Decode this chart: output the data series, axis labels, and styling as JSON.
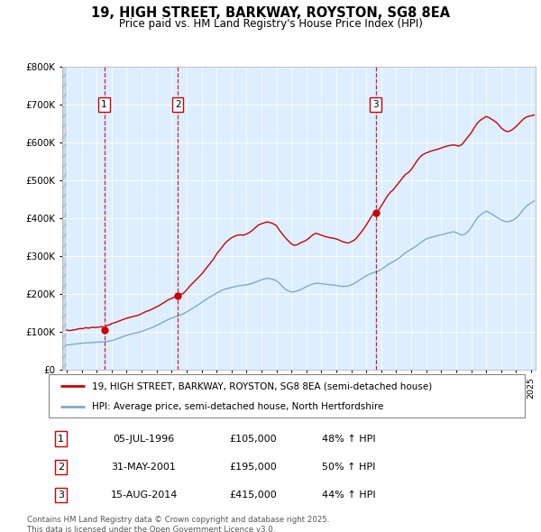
{
  "title": "19, HIGH STREET, BARKWAY, ROYSTON, SG8 8EA",
  "subtitle": "Price paid vs. HM Land Registry's House Price Index (HPI)",
  "legend_line1": "19, HIGH STREET, BARKWAY, ROYSTON, SG8 8EA (semi-detached house)",
  "legend_line2": "HPI: Average price, semi-detached house, North Hertfordshire",
  "footer": "Contains HM Land Registry data © Crown copyright and database right 2025.\nThis data is licensed under the Open Government Licence v3.0.",
  "sales": [
    {
      "num": 1,
      "date_label": "05-JUL-1996",
      "price": 105000,
      "pct": "48%",
      "x_year": 1996.5
    },
    {
      "num": 2,
      "date_label": "31-MAY-2001",
      "price": 195000,
      "pct": "50%",
      "x_year": 2001.42
    },
    {
      "num": 3,
      "date_label": "15-AUG-2014",
      "price": 415000,
      "pct": "44%",
      "x_year": 2014.62
    }
  ],
  "price_color": "#cc0000",
  "hpi_color": "#7faacc",
  "background_color": "#ddeeff",
  "ylim": [
    0,
    800000
  ],
  "yticks": [
    0,
    100000,
    200000,
    300000,
    400000,
    500000,
    600000,
    700000,
    800000
  ],
  "xmin": 1993.7,
  "xmax": 2025.3,
  "price_series_years": [
    1994.0,
    1994.1,
    1994.2,
    1994.3,
    1994.4,
    1994.5,
    1994.6,
    1994.7,
    1994.8,
    1994.9,
    1995.0,
    1995.1,
    1995.2,
    1995.3,
    1995.4,
    1995.5,
    1995.6,
    1995.7,
    1995.8,
    1995.9,
    1996.0,
    1996.1,
    1996.2,
    1996.3,
    1996.4,
    1996.5,
    1996.6,
    1996.7,
    1996.8,
    1996.9,
    1997.0,
    1997.2,
    1997.4,
    1997.6,
    1997.8,
    1998.0,
    1998.2,
    1998.4,
    1998.6,
    1998.8,
    1999.0,
    1999.2,
    1999.4,
    1999.6,
    1999.8,
    2000.0,
    2000.2,
    2000.4,
    2000.6,
    2000.8,
    2001.0,
    2001.2,
    2001.42,
    2001.6,
    2001.8,
    2002.0,
    2002.2,
    2002.4,
    2002.6,
    2002.8,
    2003.0,
    2003.2,
    2003.4,
    2003.6,
    2003.8,
    2004.0,
    2004.2,
    2004.4,
    2004.6,
    2004.8,
    2005.0,
    2005.2,
    2005.4,
    2005.6,
    2005.8,
    2006.0,
    2006.2,
    2006.4,
    2006.6,
    2006.8,
    2007.0,
    2007.2,
    2007.4,
    2007.6,
    2007.8,
    2008.0,
    2008.2,
    2008.4,
    2008.6,
    2008.8,
    2009.0,
    2009.2,
    2009.4,
    2009.6,
    2009.8,
    2010.0,
    2010.2,
    2010.4,
    2010.6,
    2010.8,
    2011.0,
    2011.2,
    2011.4,
    2011.6,
    2011.8,
    2012.0,
    2012.2,
    2012.4,
    2012.6,
    2012.8,
    2013.0,
    2013.2,
    2013.4,
    2013.6,
    2013.8,
    2014.0,
    2014.2,
    2014.4,
    2014.62,
    2014.8,
    2015.0,
    2015.2,
    2015.4,
    2015.6,
    2015.8,
    2016.0,
    2016.2,
    2016.4,
    2016.6,
    2016.8,
    2017.0,
    2017.2,
    2017.4,
    2017.6,
    2017.8,
    2018.0,
    2018.2,
    2018.4,
    2018.6,
    2018.8,
    2019.0,
    2019.2,
    2019.4,
    2019.6,
    2019.8,
    2020.0,
    2020.2,
    2020.4,
    2020.6,
    2020.8,
    2021.0,
    2021.2,
    2021.4,
    2021.6,
    2021.8,
    2022.0,
    2022.2,
    2022.4,
    2022.6,
    2022.8,
    2023.0,
    2023.2,
    2023.4,
    2023.6,
    2023.8,
    2024.0,
    2024.2,
    2024.4,
    2024.6,
    2024.8,
    2025.0,
    2025.2
  ],
  "price_series_values": [
    105000,
    104000,
    103000,
    104000,
    105000,
    105000,
    106000,
    107000,
    108000,
    109000,
    108000,
    109000,
    110000,
    111000,
    110000,
    110000,
    111000,
    112000,
    112000,
    111000,
    112000,
    112000,
    113000,
    113000,
    114000,
    105000,
    115000,
    117000,
    118000,
    119000,
    122000,
    124000,
    127000,
    130000,
    133000,
    136000,
    138000,
    140000,
    142000,
    144000,
    148000,
    152000,
    155000,
    158000,
    162000,
    166000,
    170000,
    175000,
    180000,
    185000,
    188000,
    192000,
    195000,
    198000,
    202000,
    210000,
    220000,
    228000,
    236000,
    244000,
    252000,
    262000,
    272000,
    282000,
    292000,
    305000,
    315000,
    325000,
    335000,
    342000,
    348000,
    352000,
    355000,
    356000,
    355000,
    358000,
    362000,
    368000,
    375000,
    382000,
    385000,
    388000,
    390000,
    388000,
    385000,
    380000,
    368000,
    358000,
    348000,
    340000,
    332000,
    328000,
    330000,
    335000,
    338000,
    342000,
    348000,
    355000,
    360000,
    358000,
    355000,
    352000,
    350000,
    348000,
    347000,
    345000,
    342000,
    338000,
    336000,
    334000,
    338000,
    342000,
    350000,
    360000,
    370000,
    382000,
    395000,
    408000,
    415000,
    420000,
    432000,
    445000,
    458000,
    468000,
    475000,
    485000,
    495000,
    505000,
    515000,
    520000,
    528000,
    540000,
    552000,
    562000,
    568000,
    572000,
    575000,
    578000,
    580000,
    582000,
    585000,
    588000,
    590000,
    592000,
    593000,
    592000,
    590000,
    595000,
    605000,
    615000,
    625000,
    638000,
    650000,
    658000,
    663000,
    668000,
    665000,
    660000,
    655000,
    648000,
    638000,
    632000,
    628000,
    630000,
    635000,
    642000,
    650000,
    658000,
    665000,
    668000,
    670000,
    672000
  ],
  "hpi_series_years": [
    1994.0,
    1994.1,
    1994.2,
    1994.4,
    1994.6,
    1994.8,
    1995.0,
    1995.2,
    1995.4,
    1995.6,
    1995.8,
    1996.0,
    1996.2,
    1996.4,
    1996.6,
    1996.8,
    1997.0,
    1997.2,
    1997.4,
    1997.6,
    1997.8,
    1998.0,
    1998.2,
    1998.4,
    1998.6,
    1998.8,
    1999.0,
    1999.2,
    1999.4,
    1999.6,
    1999.8,
    2000.0,
    2000.2,
    2000.4,
    2000.6,
    2000.8,
    2001.0,
    2001.2,
    2001.4,
    2001.6,
    2001.8,
    2002.0,
    2002.2,
    2002.4,
    2002.6,
    2002.8,
    2003.0,
    2003.2,
    2003.4,
    2003.6,
    2003.8,
    2004.0,
    2004.2,
    2004.4,
    2004.6,
    2004.8,
    2005.0,
    2005.2,
    2005.4,
    2005.6,
    2005.8,
    2006.0,
    2006.2,
    2006.4,
    2006.6,
    2006.8,
    2007.0,
    2007.2,
    2007.4,
    2007.6,
    2007.8,
    2008.0,
    2008.2,
    2008.4,
    2008.6,
    2008.8,
    2009.0,
    2009.2,
    2009.4,
    2009.6,
    2009.8,
    2010.0,
    2010.2,
    2010.4,
    2010.6,
    2010.8,
    2011.0,
    2011.2,
    2011.4,
    2011.6,
    2011.8,
    2012.0,
    2012.2,
    2012.4,
    2012.6,
    2012.8,
    2013.0,
    2013.2,
    2013.4,
    2013.6,
    2013.8,
    2014.0,
    2014.2,
    2014.4,
    2014.6,
    2014.8,
    2015.0,
    2015.2,
    2015.4,
    2015.6,
    2015.8,
    2016.0,
    2016.2,
    2016.4,
    2016.6,
    2016.8,
    2017.0,
    2017.2,
    2017.4,
    2017.6,
    2017.8,
    2018.0,
    2018.2,
    2018.4,
    2018.6,
    2018.8,
    2019.0,
    2019.2,
    2019.4,
    2019.6,
    2019.8,
    2020.0,
    2020.2,
    2020.4,
    2020.6,
    2020.8,
    2021.0,
    2021.2,
    2021.4,
    2021.6,
    2021.8,
    2022.0,
    2022.2,
    2022.4,
    2022.6,
    2022.8,
    2023.0,
    2023.2,
    2023.4,
    2023.6,
    2023.8,
    2024.0,
    2024.2,
    2024.4,
    2024.6,
    2024.8,
    2025.0,
    2025.2
  ],
  "hpi_series_values": [
    65000,
    65500,
    66000,
    67000,
    68000,
    69000,
    70000,
    70500,
    71000,
    71500,
    72000,
    72500,
    73000,
    73500,
    74000,
    75000,
    77000,
    79000,
    82000,
    85000,
    88000,
    91000,
    93000,
    95000,
    97000,
    99000,
    101000,
    104000,
    107000,
    110000,
    113000,
    117000,
    121000,
    125000,
    129000,
    133000,
    136000,
    139000,
    142000,
    145000,
    148000,
    152000,
    157000,
    162000,
    167000,
    172000,
    177000,
    183000,
    188000,
    193000,
    197000,
    202000,
    206000,
    210000,
    213000,
    215000,
    217000,
    219000,
    221000,
    222000,
    223000,
    224000,
    226000,
    228000,
    231000,
    234000,
    237000,
    240000,
    241000,
    240000,
    238000,
    235000,
    228000,
    220000,
    212000,
    208000,
    205000,
    206000,
    208000,
    211000,
    215000,
    219000,
    223000,
    226000,
    228000,
    228000,
    227000,
    226000,
    225000,
    224000,
    224000,
    222000,
    221000,
    220000,
    220000,
    221000,
    224000,
    228000,
    233000,
    238000,
    243000,
    248000,
    252000,
    255000,
    258000,
    260000,
    265000,
    270000,
    276000,
    281000,
    285000,
    290000,
    295000,
    302000,
    308000,
    313000,
    318000,
    323000,
    328000,
    335000,
    340000,
    345000,
    348000,
    350000,
    352000,
    354000,
    356000,
    358000,
    360000,
    362000,
    364000,
    362000,
    358000,
    355000,
    358000,
    365000,
    375000,
    388000,
    400000,
    408000,
    414000,
    418000,
    415000,
    410000,
    405000,
    400000,
    395000,
    392000,
    390000,
    392000,
    395000,
    400000,
    408000,
    418000,
    428000,
    435000,
    440000,
    445000
  ]
}
